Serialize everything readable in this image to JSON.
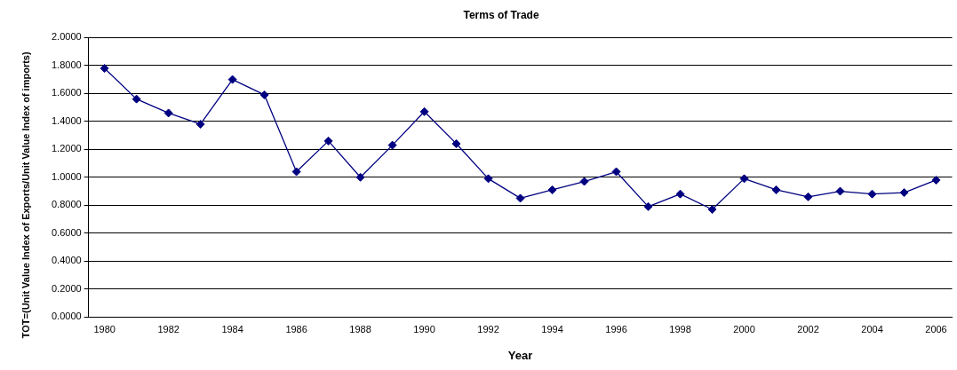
{
  "chart_data": {
    "type": "line",
    "title": "Terms of Trade",
    "xlabel": "Year",
    "ylabel": "TOT=(Unit Value Index of Exports/Unit Value Index of imports)",
    "categories": [
      "1980",
      null,
      "1982",
      null,
      "1984",
      null,
      "1986",
      null,
      "1988",
      null,
      "1990",
      null,
      "1992",
      null,
      "1994",
      null,
      "1996",
      null,
      "1998",
      null,
      "2000",
      null,
      "2002",
      null,
      "2004",
      null,
      "2006"
    ],
    "series": [
      {
        "color": "#000080",
        "values": [
          1.78,
          1.56,
          1.46,
          1.38,
          1.7,
          1.59,
          1.04,
          1.26,
          1.0,
          1.23,
          1.47,
          1.24,
          0.99,
          0.85,
          0.91,
          0.97,
          1.04,
          0.79,
          0.88,
          0.77,
          0.99,
          0.91,
          0.86,
          0.9,
          0.88,
          0.89,
          0.98
        ]
      }
    ],
    "ylim": [
      0,
      2
    ],
    "yticks": [
      {
        "value": 0,
        "label": "0.0000"
      },
      {
        "value": 0.2,
        "label": "0.2000"
      },
      {
        "value": 0.4,
        "label": "0.4000"
      },
      {
        "value": 0.6,
        "label": "0.6000"
      },
      {
        "value": 0.8,
        "label": "0.8000"
      },
      {
        "value": 1,
        "label": "1.0000"
      },
      {
        "value": 1.2,
        "label": "1.2000"
      },
      {
        "value": 1.4,
        "label": "1.4000"
      },
      {
        "value": 1.6,
        "label": "1.6000"
      },
      {
        "value": 1.8,
        "label": "1.8000"
      },
      {
        "value": 2,
        "label": "2.0000"
      }
    ],
    "grid": "y",
    "legend": false,
    "marker": "diamond",
    "line_style": "solid"
  }
}
